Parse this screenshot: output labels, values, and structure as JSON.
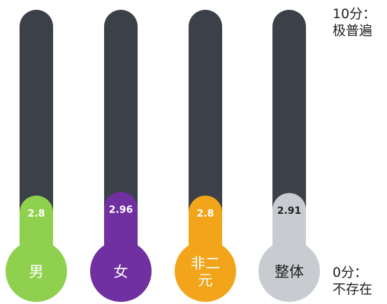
{
  "chart_data": {
    "type": "bar",
    "categories": [
      "男",
      "女",
      "非二\n元",
      "整体"
    ],
    "values": [
      2.8,
      2.96,
      2.8,
      2.91
    ],
    "value_labels": [
      "2.8",
      "2.96",
      "2.8",
      "2.91"
    ],
    "ylim": [
      0,
      10
    ],
    "colors": [
      "#8fd14f",
      "#7030a0",
      "#f2a51a",
      "#c8ccd1"
    ],
    "label_colors": [
      "#ffffff",
      "#ffffff",
      "#ffffff",
      "#222222"
    ],
    "track_color": "#3c4048",
    "scale_max_label": "10分：\n极普遍",
    "scale_min_label": "0分：\n不存在"
  }
}
